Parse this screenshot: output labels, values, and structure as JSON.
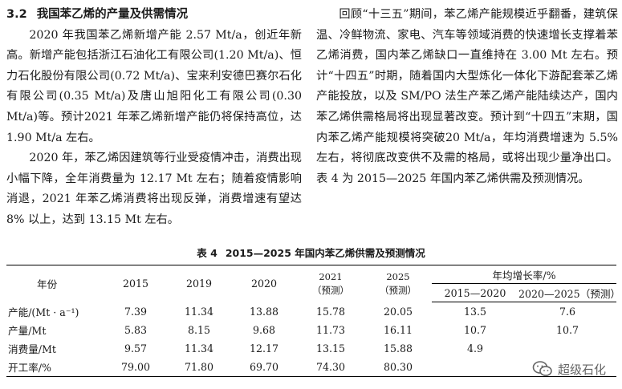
{
  "section": {
    "number": "3.2",
    "title": "我国苯乙烯的产量及供需情况"
  },
  "left_paragraphs": [
    "2020 年我国苯乙烯新增产能 2.57 Mt/a，创近年新高。新增产能包括浙江石油化工有限公司(1.20 Mt/a)、恒力石化股份有限公司(0.72 Mt/a)、宝来利安德巴赛尔石化有限公司(0.35 Mt/a)及唐山旭阳化工有限公司(0.30 Mt/a)等。预计2021 年苯乙烯新增产能仍将保持高位，达 1.90 Mt/a 左右。",
    "2020 年，苯乙烯因建筑等行业受疫情冲击，消费出现小幅下降，全年消费量为 12.17 Mt 左右；随着疫情影响消退，2021 年苯乙烯消费将出现反弹，消费增速有望达 8% 以上，达到 13.15 Mt 左右。"
  ],
  "right_paragraph": "回顾“十三五”期间，苯乙烯产能规模近乎翻番，建筑保温、冷鲜物流、家电、汽车等领域消费的快速增长支撑着苯乙烯消费，国内苯乙烯缺口一直维持在 3.00 Mt 左右。预计“十四五”时期，随着国内大型炼化一体化下游配套苯乙烯产能投放，以及 SM/PO 法生产苯乙烯产能陆续达产，国内苯乙烯供需格局将出现显著改变。预计到“十四五”末期，国内苯乙烯产能规模将突破20 Mt/a，年均消费增速为 5.5% 左右，将彻底改变供不及需的格局，或将出现少量净出口。表 4 为 2015—2025 年国内苯乙烯供需及预测情况。",
  "table": {
    "caption_number": "表 4",
    "caption_title": "2015—2025 年国内苯乙烯供需及预测情况",
    "header": {
      "year_label": "年份",
      "y2015": "2015",
      "y2019": "2019",
      "y2020": "2020",
      "y2021": "2021",
      "y2021_note": "（预测）",
      "y2025": "2025",
      "y2025_note": "（预测）",
      "growth_label": "年均增长率/%",
      "growth_a": "2015—2020",
      "growth_b": "2020—2025（预测）"
    },
    "rows": [
      {
        "label": "产能/(Mt · a⁻¹)",
        "v2015": "7.39",
        "v2019": "11.34",
        "v2020": "13.88",
        "v2021": "15.78",
        "v2025": "20.05",
        "g1": "13.5",
        "g2": "7.6"
      },
      {
        "label": "产量/Mt",
        "v2015": "5.83",
        "v2019": "8.15",
        "v2020": "9.68",
        "v2021": "11.73",
        "v2025": "16.11",
        "g1": "10.7",
        "g2": "10.7"
      },
      {
        "label": "消费量/Mt",
        "v2015": "9.57",
        "v2019": "11.34",
        "v2020": "12.17",
        "v2021": "13.15",
        "v2025": "15.88",
        "g1": "4.9",
        "g2": ""
      },
      {
        "label": "开工率/%",
        "v2015": "79.00",
        "v2019": "71.80",
        "v2020": "69.70",
        "v2021": "74.30",
        "v2025": "80.30",
        "g1": "",
        "g2": ""
      }
    ]
  },
  "watermark": {
    "text": "超级石化",
    "icon": "wechat-icon"
  }
}
